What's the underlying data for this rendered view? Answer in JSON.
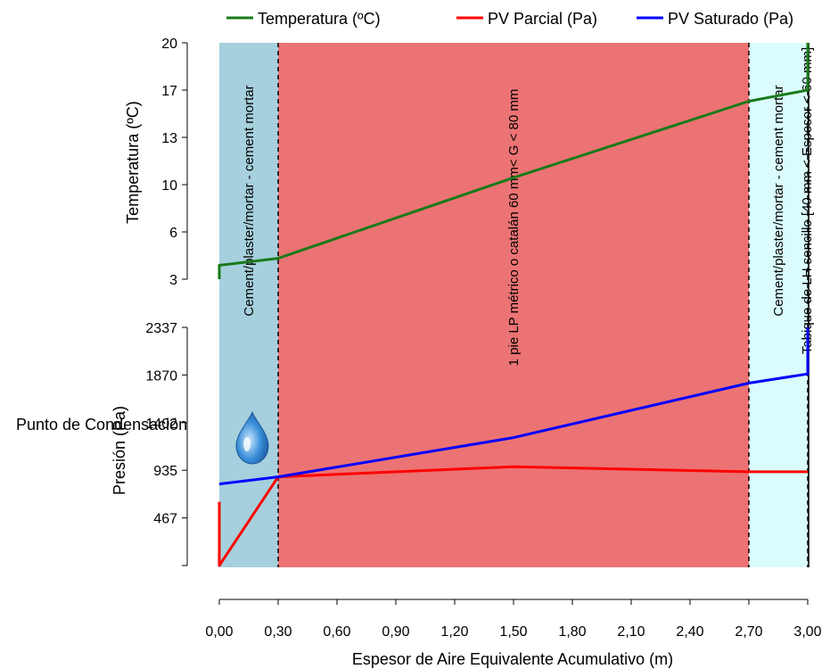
{
  "chart_data": {
    "type": "line",
    "xlabel": "Espesor de Aire Equivalente Acumulativo (m)",
    "x_ticks": [
      "0,00",
      "0,30",
      "0,60",
      "0,90",
      "1,20",
      "1,50",
      "1,80",
      "2,10",
      "2,40",
      "2,70",
      "3,00"
    ],
    "xlim": [
      0,
      3.0
    ],
    "temperature_axis": {
      "label": "Temperatura (ºC)",
      "ticks": [
        "3",
        "6",
        "10",
        "13",
        "17",
        "20"
      ],
      "ylim": [
        3,
        20
      ]
    },
    "pressure_axis": {
      "label": "Presión (Pa)",
      "ticks": [
        "467",
        "935",
        "1402",
        "1870",
        "2337"
      ],
      "ylim": [
        0,
        2337
      ]
    },
    "legend": [
      {
        "name": "Temperatura (ºC)",
        "color": "#1a7a1a"
      },
      {
        "name": "PV Parcial (Pa)",
        "color": "#ff0000"
      },
      {
        "name": "PV Saturado (Pa)",
        "color": "#0000ff"
      }
    ],
    "layers": [
      {
        "name": "Cement/plaster/mortar - cement  mortar",
        "x_start": 0.0,
        "x_end": 0.3,
        "color": "#a6d0dd"
      },
      {
        "name": "1 pie LP métrico o catalán 60 mm< G < 80 mm",
        "x_start": 0.3,
        "x_end": 2.7,
        "color": "#ec7373"
      },
      {
        "name": "Cement/plaster/mortar - cement  mortar",
        "x_start": 2.7,
        "x_end": 3.0,
        "color": "#dafcfc"
      },
      {
        "name": "Tabique de LH sencillo [40 mm < Espesor < 60 mm]",
        "x_start": 3.0,
        "x_end": 3.005,
        "color": "#333333"
      }
    ],
    "series": [
      {
        "name": "Temperatura (ºC)",
        "axis": "temperature",
        "x": [
          0.0,
          0.0,
          0.3,
          1.5,
          2.7,
          3.0,
          3.0
        ],
        "y": [
          3.0,
          4.0,
          4.5,
          10.3,
          15.8,
          16.6,
          20.0
        ]
      },
      {
        "name": "PV Parcial (Pa)",
        "axis": "pressure",
        "x": [
          0.0,
          0.0,
          0.3,
          1.5,
          2.7,
          3.0
        ],
        "y": [
          625,
          0,
          870,
          970,
          920,
          920
        ]
      },
      {
        "name": "PV Saturado (Pa)",
        "axis": "pressure",
        "x": [
          0.0,
          0.3,
          1.5,
          2.7,
          3.0,
          3.0
        ],
        "y": [
          800,
          870,
          1255,
          1790,
          1880,
          2337
        ]
      }
    ],
    "annotation": "Punto de Condensación"
  }
}
